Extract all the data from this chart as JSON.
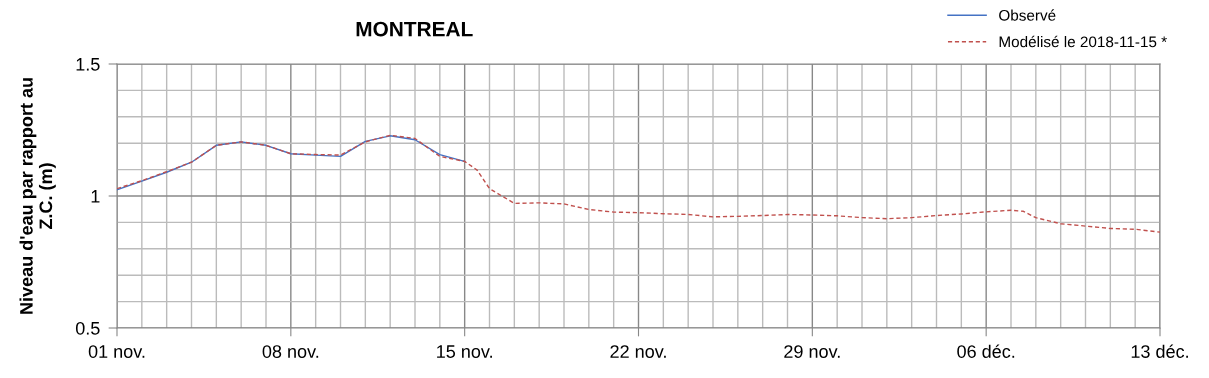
{
  "chart_data": {
    "type": "line",
    "title": "MONTREAL",
    "ylabel": "Niveau d'eau par rapport au\nZ.C. (m)",
    "series": [
      {
        "name": "Observé",
        "color": "#4472c4",
        "line_style": "solid",
        "x": [
          "2018-11-01",
          "2018-11-02",
          "2018-11-03",
          "2018-11-04",
          "2018-11-05",
          "2018-11-06",
          "2018-11-07",
          "2018-11-08",
          "2018-11-09",
          "2018-11-10",
          "2018-11-11",
          "2018-11-12",
          "2018-11-13",
          "2018-11-14",
          "2018-11-15"
        ],
        "values": [
          1.024,
          1.056,
          1.09,
          1.128,
          1.192,
          1.205,
          1.192,
          1.16,
          1.155,
          1.15,
          1.207,
          1.228,
          1.213,
          1.157,
          1.131
        ]
      },
      {
        "name": "Modélisé le 2018-11-15 *",
        "color": "#c0504d",
        "line_style": "dashed",
        "x": [
          "2018-11-01",
          "2018-11-02",
          "2018-11-03",
          "2018-11-04",
          "2018-11-05",
          "2018-11-06",
          "2018-11-07",
          "2018-11-08",
          "2018-11-09",
          "2018-11-10",
          "2018-11-11",
          "2018-11-12",
          "2018-11-13",
          "2018-11-14",
          "2018-11-15",
          "2018-11-15T12:00",
          "2018-11-16",
          "2018-11-17",
          "2018-11-18",
          "2018-11-19",
          "2018-11-20",
          "2018-11-21",
          "2018-11-22",
          "2018-11-23",
          "2018-11-24",
          "2018-11-25",
          "2018-11-26",
          "2018-11-27",
          "2018-11-28",
          "2018-11-29",
          "2018-11-30",
          "2018-12-01",
          "2018-12-02",
          "2018-12-03",
          "2018-12-04",
          "2018-12-05",
          "2018-12-06",
          "2018-12-07",
          "2018-12-07T12:00",
          "2018-12-08",
          "2018-12-09",
          "2018-12-10",
          "2018-12-11",
          "2018-12-12",
          "2018-12-13"
        ],
        "values": [
          1.028,
          1.058,
          1.092,
          1.128,
          1.192,
          1.205,
          1.192,
          1.16,
          1.157,
          1.155,
          1.205,
          1.23,
          1.218,
          1.15,
          1.131,
          1.098,
          1.028,
          0.972,
          0.974,
          0.97,
          0.949,
          0.939,
          0.937,
          0.933,
          0.93,
          0.921,
          0.923,
          0.926,
          0.93,
          0.928,
          0.925,
          0.918,
          0.914,
          0.918,
          0.926,
          0.932,
          0.94,
          0.946,
          0.942,
          0.918,
          0.895,
          0.886,
          0.877,
          0.874,
          0.863
        ]
      }
    ],
    "xlim": [
      "2018-11-01",
      "2018-12-13"
    ],
    "xticks": [
      {
        "value": "2018-11-01",
        "label": "01 nov."
      },
      {
        "value": "2018-11-02",
        "label": null
      },
      {
        "value": "2018-11-03",
        "label": null
      },
      {
        "value": "2018-11-04",
        "label": null
      },
      {
        "value": "2018-11-05",
        "label": null
      },
      {
        "value": "2018-11-06",
        "label": null
      },
      {
        "value": "2018-11-07",
        "label": null
      },
      {
        "value": "2018-11-08",
        "label": "08 nov."
      },
      {
        "value": "2018-11-09",
        "label": null
      },
      {
        "value": "2018-11-10",
        "label": null
      },
      {
        "value": "2018-11-11",
        "label": null
      },
      {
        "value": "2018-11-12",
        "label": null
      },
      {
        "value": "2018-11-13",
        "label": null
      },
      {
        "value": "2018-11-14",
        "label": null
      },
      {
        "value": "2018-11-15",
        "label": "15 nov."
      },
      {
        "value": "2018-11-16",
        "label": null
      },
      {
        "value": "2018-11-17",
        "label": null
      },
      {
        "value": "2018-11-18",
        "label": null
      },
      {
        "value": "2018-11-19",
        "label": null
      },
      {
        "value": "2018-11-20",
        "label": null
      },
      {
        "value": "2018-11-21",
        "label": null
      },
      {
        "value": "2018-11-22",
        "label": "22 nov."
      },
      {
        "value": "2018-11-23",
        "label": null
      },
      {
        "value": "2018-11-24",
        "label": null
      },
      {
        "value": "2018-11-25",
        "label": null
      },
      {
        "value": "2018-11-26",
        "label": null
      },
      {
        "value": "2018-11-27",
        "label": null
      },
      {
        "value": "2018-11-28",
        "label": null
      },
      {
        "value": "2018-11-29",
        "label": "29 nov."
      },
      {
        "value": "2018-11-30",
        "label": null
      },
      {
        "value": "2018-12-01",
        "label": null
      },
      {
        "value": "2018-12-02",
        "label": null
      },
      {
        "value": "2018-12-03",
        "label": null
      },
      {
        "value": "2018-12-04",
        "label": null
      },
      {
        "value": "2018-12-05",
        "label": null
      },
      {
        "value": "2018-12-06",
        "label": "06 déc."
      },
      {
        "value": "2018-12-07",
        "label": null
      },
      {
        "value": "2018-12-08",
        "label": null
      },
      {
        "value": "2018-12-09",
        "label": null
      },
      {
        "value": "2018-12-10",
        "label": null
      },
      {
        "value": "2018-12-11",
        "label": null
      },
      {
        "value": "2018-12-12",
        "label": null
      },
      {
        "value": "2018-12-13",
        "label": "13 déc."
      }
    ],
    "ylim": [
      0.5,
      1.5
    ],
    "yticks": [
      0.5,
      {
        "value": 0.6,
        "label": null
      },
      {
        "value": 0.7,
        "label": null
      },
      {
        "value": 0.8,
        "label": null
      },
      {
        "value": 0.9,
        "label": null
      },
      {
        "value": 1,
        "label": "1"
      },
      {
        "value": 1.1,
        "label": null
      },
      {
        "value": 1.2,
        "label": null
      },
      {
        "value": 1.3,
        "label": null
      },
      {
        "value": 1.4,
        "label": null
      },
      1.5
    ],
    "grid": true,
    "legend": "top right",
    "marker": "none"
  }
}
